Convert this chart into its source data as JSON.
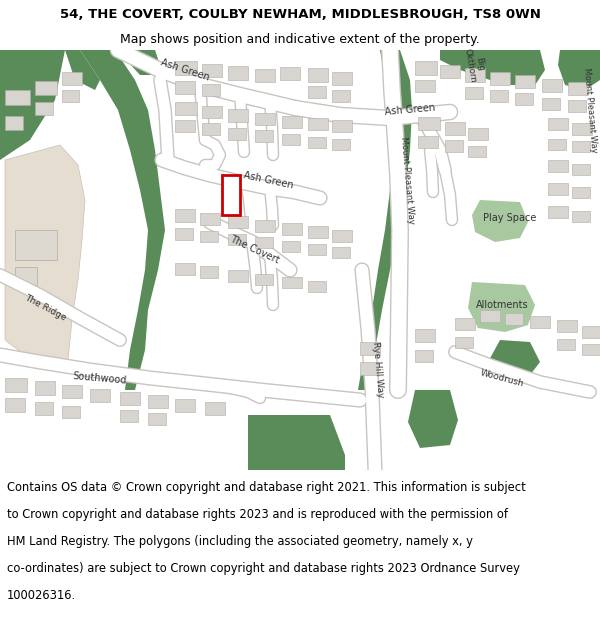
{
  "title_line1": "54, THE COVERT, COULBY NEWHAM, MIDDLESBROUGH, TS8 0WN",
  "title_line2": "Map shows position and indicative extent of the property.",
  "footer_text": "Contains OS data © Crown copyright and database right 2021. This information is subject to Crown copyright and database rights 2023 and is reproduced with the permission of HM Land Registry. The polygons (including the associated geometry, namely x, y co-ordinates) are subject to Crown copyright and database rights 2023 Ordnance Survey 100026316.",
  "title_fontsize": 9.5,
  "subtitle_fontsize": 9,
  "footer_fontsize": 8.3,
  "green_dark": "#5a8c5a",
  "green_light": "#a8c8a0",
  "building_color": "#d8d5d0",
  "building_edge": "#b0aca8",
  "road_color": "#ffffff",
  "road_edge": "#d0ccc8",
  "bg_color": "#f0eeea",
  "tan_color": "#e5ddd0",
  "highlight_color": "#cc0000",
  "fig_width": 6.0,
  "fig_height": 6.25,
  "dpi": 100
}
